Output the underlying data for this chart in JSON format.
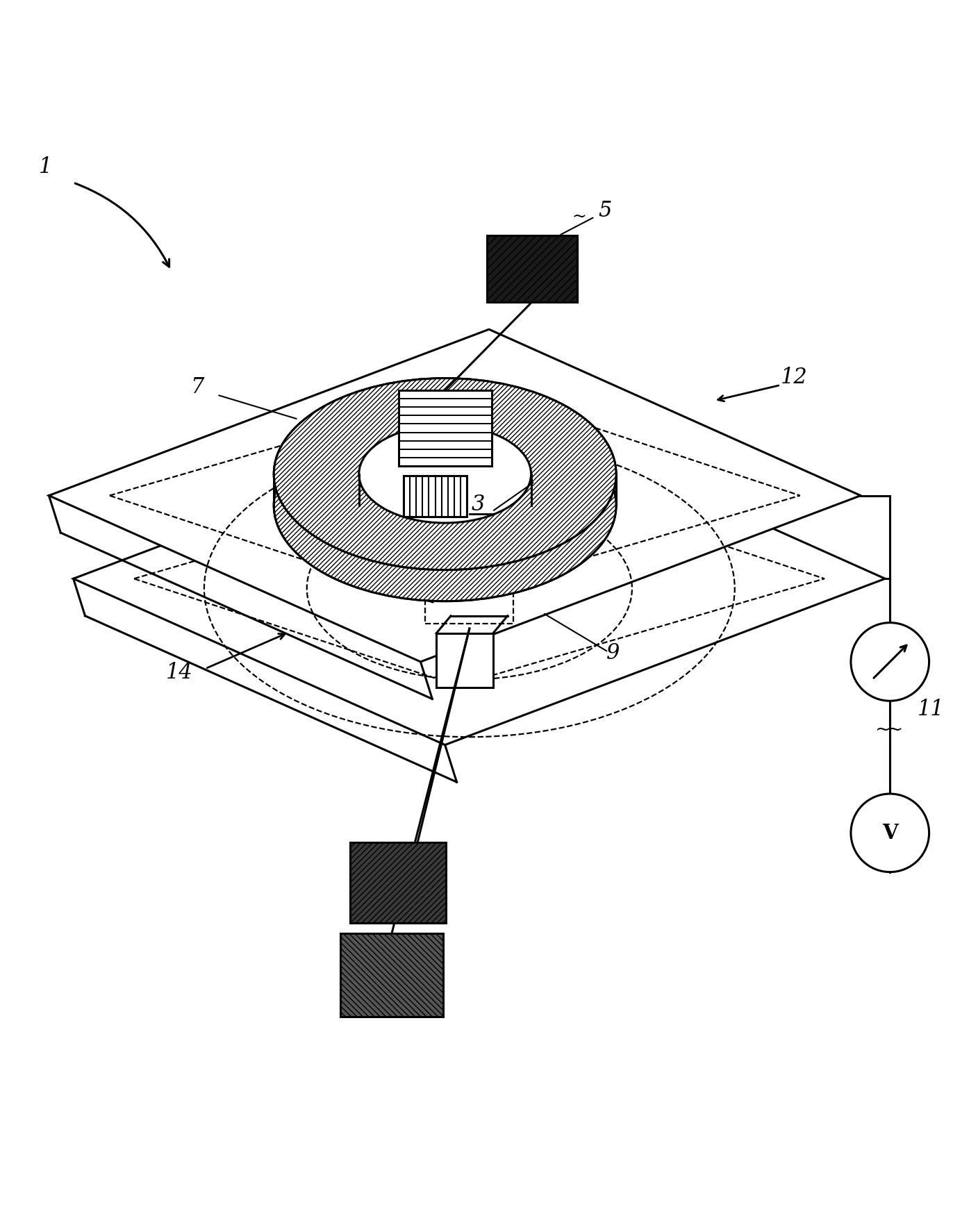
{
  "bg_color": "#ffffff",
  "line_color": "#000000",
  "fig_width": 14.08,
  "fig_height": 17.51,
  "label_fontsize": 22
}
